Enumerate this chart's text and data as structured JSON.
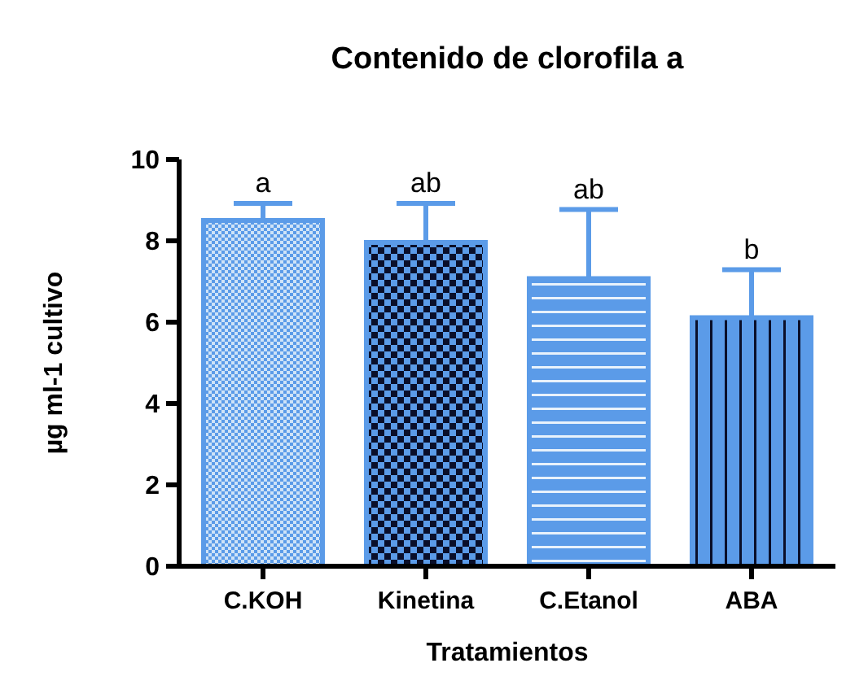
{
  "chart_data": {
    "type": "bar",
    "title": "Contenido de clorofila a",
    "xlabel": "Tratamientos",
    "ylabel": "µg ml-1 cultivo",
    "categories": [
      "C.KOH",
      "Kinetina",
      "C.Etanol",
      "ABA"
    ],
    "values": [
      8.5,
      7.96,
      7.07,
      6.11
    ],
    "errors": [
      [
        8.5,
        8.92
      ],
      [
        7.96,
        8.92
      ],
      [
        7.07,
        8.77
      ],
      [
        6.11,
        7.29
      ]
    ],
    "color": "#5b9be8",
    "ylim": [
      0,
      10
    ],
    "yticks": [
      0,
      2,
      4,
      6,
      8,
      10
    ],
    "grid": false,
    "annotations": [
      "a",
      "ab",
      "ab",
      "b"
    ]
  }
}
